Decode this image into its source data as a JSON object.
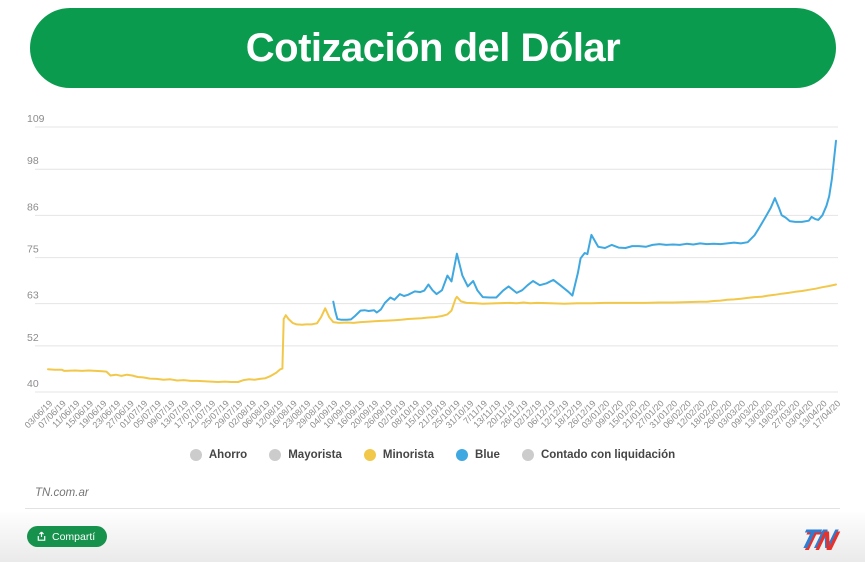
{
  "header": {
    "title": "Cotización del Dólar"
  },
  "footer": {
    "credit": "TN.com.ar",
    "share_label": "Compartí",
    "logo": {
      "t": "T",
      "n": "N"
    }
  },
  "legend": {
    "items": [
      {
        "label": "Ahorro",
        "color": "#cccccc",
        "active": false
      },
      {
        "label": "Mayorista",
        "color": "#cccccc",
        "active": false
      },
      {
        "label": "Minorista",
        "color": "#f2c84b",
        "active": true
      },
      {
        "label": "Blue",
        "color": "#3fa8e0",
        "active": true
      },
      {
        "label": "Contado con liquidación",
        "color": "#cccccc",
        "active": false
      }
    ]
  },
  "colors": {
    "banner_green": "#0a9b4e",
    "button_green": "#16924d",
    "gridline": "#e4e4e4",
    "axis_text": "#8c8c8c",
    "minorista": "#f2c84b",
    "blue": "#3fa8e0",
    "logo_red": "#e8312a",
    "logo_blue": "#2d7dd2"
  },
  "chart_data": {
    "type": "line",
    "title": "Cotización del Dólar",
    "xlabel": "",
    "ylabel": "",
    "ylim": [
      40,
      109
    ],
    "y_ticks": [
      40,
      52,
      63,
      75,
      86,
      98,
      109
    ],
    "grid": true,
    "legend_position": "bottom",
    "x_labels": [
      "03/06/19",
      "07/06/19",
      "11/06/19",
      "15/06/19",
      "19/06/19",
      "23/06/19",
      "27/06/19",
      "01/07/19",
      "05/07/19",
      "09/07/19",
      "13/07/19",
      "17/07/19",
      "21/07/19",
      "25/07/19",
      "29/07/19",
      "02/08/19",
      "06/08/19",
      "12/08/19",
      "16/08/19",
      "23/08/19",
      "29/08/19",
      "04/09/19",
      "10/09/19",
      "16/09/19",
      "20/09/19",
      "26/09/19",
      "02/10/19",
      "08/10/19",
      "15/10/19",
      "21/10/19",
      "25/10/19",
      "31/10/19",
      "7/11/19",
      "13/11/19",
      "20/11/19",
      "26/11/19",
      "02/12/19",
      "06/12/19",
      "12/12/19",
      "18/12/19",
      "26/12/19",
      "03/01/20",
      "09/01/20",
      "15/01/20",
      "21/01/20",
      "27/01/20",
      "31/01/20",
      "06/02/20",
      "12/02/20",
      "18/02/20",
      "26/02/20",
      "03/03/20",
      "09/03/20",
      "13/03/20",
      "19/03/20",
      "27/03/20",
      "03/04/20",
      "13/04/20",
      "17/04/20"
    ],
    "series": [
      {
        "name": "Ahorro",
        "color": "#cccccc",
        "visible": false,
        "points": []
      },
      {
        "name": "Mayorista",
        "color": "#cccccc",
        "visible": false,
        "points": []
      },
      {
        "name": "Minorista",
        "color": "#f2c84b",
        "visible": true,
        "points": [
          [
            0,
            45.9
          ],
          [
            0.5,
            45.8
          ],
          [
            1,
            45.8
          ],
          [
            1.2,
            45.5
          ],
          [
            2,
            45.6
          ],
          [
            2.5,
            45.5
          ],
          [
            3,
            45.6
          ],
          [
            3.5,
            45.5
          ],
          [
            4,
            45.4
          ],
          [
            4.3,
            45.3
          ],
          [
            4.6,
            44.3
          ],
          [
            5,
            44.5
          ],
          [
            5.4,
            44.2
          ],
          [
            5.8,
            44.5
          ],
          [
            6.2,
            44.3
          ],
          [
            6.6,
            43.9
          ],
          [
            7,
            43.8
          ],
          [
            7.5,
            43.5
          ],
          [
            8,
            43.4
          ],
          [
            8.5,
            43.2
          ],
          [
            9,
            43.3
          ],
          [
            9.5,
            43.0
          ],
          [
            10,
            43.1
          ],
          [
            10.5,
            42.9
          ],
          [
            11,
            42.9
          ],
          [
            11.5,
            42.8
          ],
          [
            12,
            42.7
          ],
          [
            12.5,
            42.6
          ],
          [
            13,
            42.7
          ],
          [
            13.5,
            42.6
          ],
          [
            14,
            42.6
          ],
          [
            14.4,
            43.1
          ],
          [
            14.8,
            43.3
          ],
          [
            15.2,
            43.2
          ],
          [
            15.6,
            43.4
          ],
          [
            16,
            43.6
          ],
          [
            16.4,
            44.2
          ],
          [
            16.8,
            45.0
          ],
          [
            17.1,
            45.9
          ],
          [
            17.25,
            46.1
          ],
          [
            17.35,
            59.0
          ],
          [
            17.5,
            60.0
          ],
          [
            17.7,
            59.0
          ],
          [
            18,
            58.0
          ],
          [
            18.3,
            57.6
          ],
          [
            18.7,
            57.5
          ],
          [
            19,
            57.6
          ],
          [
            19.4,
            57.6
          ],
          [
            19.8,
            57.9
          ],
          [
            20.1,
            59.5
          ],
          [
            20.4,
            61.8
          ],
          [
            20.7,
            59.5
          ],
          [
            21,
            58.2
          ],
          [
            21.4,
            58.0
          ],
          [
            22,
            58.1
          ],
          [
            22.5,
            58.0
          ],
          [
            23,
            58.2
          ],
          [
            23.5,
            58.3
          ],
          [
            24,
            58.4
          ],
          [
            24.5,
            58.5
          ],
          [
            25,
            58.6
          ],
          [
            25.5,
            58.7
          ],
          [
            26,
            58.8
          ],
          [
            26.5,
            59.0
          ],
          [
            27,
            59.1
          ],
          [
            27.5,
            59.2
          ],
          [
            28,
            59.4
          ],
          [
            28.5,
            59.5
          ],
          [
            29,
            59.8
          ],
          [
            29.4,
            60.2
          ],
          [
            29.7,
            61.2
          ],
          [
            30,
            64.3
          ],
          [
            30.1,
            64.8
          ],
          [
            30.4,
            63.6
          ],
          [
            30.8,
            63.2
          ],
          [
            31.5,
            63.1
          ],
          [
            32,
            63.0
          ],
          [
            33,
            63.1
          ],
          [
            34,
            63.2
          ],
          [
            34.5,
            63.1
          ],
          [
            35,
            63.3
          ],
          [
            35.5,
            63.1
          ],
          [
            36,
            63.2
          ],
          [
            37,
            63.1
          ],
          [
            38,
            63.0
          ],
          [
            39,
            63.1
          ],
          [
            40,
            63.1
          ],
          [
            41,
            63.2
          ],
          [
            42,
            63.2
          ],
          [
            43,
            63.2
          ],
          [
            44,
            63.2
          ],
          [
            45,
            63.3
          ],
          [
            46,
            63.3
          ],
          [
            47,
            63.4
          ],
          [
            48,
            63.5
          ],
          [
            48.5,
            63.5
          ],
          [
            49,
            63.7
          ],
          [
            49.5,
            63.8
          ],
          [
            50,
            64.0
          ],
          [
            50.5,
            64.1
          ],
          [
            51,
            64.3
          ],
          [
            51.5,
            64.5
          ],
          [
            52,
            64.7
          ],
          [
            52.5,
            64.8
          ],
          [
            53,
            65.1
          ],
          [
            53.5,
            65.3
          ],
          [
            54,
            65.6
          ],
          [
            54.5,
            65.8
          ],
          [
            55,
            66.1
          ],
          [
            55.5,
            66.3
          ],
          [
            56,
            66.6
          ],
          [
            56.5,
            66.9
          ],
          [
            57,
            67.3
          ],
          [
            57.5,
            67.6
          ],
          [
            58,
            68.0
          ]
        ]
      },
      {
        "name": "Blue",
        "color": "#3fa8e0",
        "visible": true,
        "points": [
          [
            21,
            63.5
          ],
          [
            21.15,
            61.0
          ],
          [
            21.3,
            59.0
          ],
          [
            21.6,
            58.8
          ],
          [
            22,
            58.8
          ],
          [
            22.3,
            58.9
          ],
          [
            22.6,
            59.8
          ],
          [
            23,
            61.2
          ],
          [
            23.3,
            61.3
          ],
          [
            23.6,
            61.1
          ],
          [
            24,
            61.3
          ],
          [
            24.2,
            60.7
          ],
          [
            24.5,
            61.5
          ],
          [
            24.8,
            63.2
          ],
          [
            25.2,
            64.6
          ],
          [
            25.5,
            64.0
          ],
          [
            25.9,
            65.5
          ],
          [
            26.2,
            65.0
          ],
          [
            26.5,
            65.3
          ],
          [
            27,
            66.2
          ],
          [
            27.4,
            66.0
          ],
          [
            27.7,
            66.4
          ],
          [
            28,
            68.0
          ],
          [
            28.3,
            66.5
          ],
          [
            28.6,
            65.5
          ],
          [
            29,
            66.5
          ],
          [
            29.4,
            70.3
          ],
          [
            29.7,
            68.8
          ],
          [
            30.1,
            76.0
          ],
          [
            30.5,
            70.3
          ],
          [
            30.9,
            67.5
          ],
          [
            31.3,
            68.9
          ],
          [
            31.6,
            66.5
          ],
          [
            32,
            64.7
          ],
          [
            32.5,
            64.6
          ],
          [
            33,
            64.6
          ],
          [
            33.5,
            66.4
          ],
          [
            33.9,
            67.5
          ],
          [
            34.5,
            65.8
          ],
          [
            34.9,
            66.5
          ],
          [
            35.3,
            67.8
          ],
          [
            35.7,
            68.9
          ],
          [
            36.2,
            67.8
          ],
          [
            36.7,
            68.3
          ],
          [
            37.2,
            69.2
          ],
          [
            37.7,
            67.8
          ],
          [
            38.3,
            66.1
          ],
          [
            38.6,
            65.1
          ],
          [
            39,
            71.0
          ],
          [
            39.2,
            74.8
          ],
          [
            39.5,
            76.2
          ],
          [
            39.7,
            75.9
          ],
          [
            40,
            80.9
          ],
          [
            40.5,
            77.8
          ],
          [
            41,
            77.5
          ],
          [
            41.5,
            78.3
          ],
          [
            42,
            77.6
          ],
          [
            42.5,
            77.5
          ],
          [
            43,
            78.0
          ],
          [
            43.5,
            78.0
          ],
          [
            44,
            77.8
          ],
          [
            44.5,
            78.3
          ],
          [
            45,
            78.5
          ],
          [
            45.5,
            78.3
          ],
          [
            46,
            78.4
          ],
          [
            46.5,
            78.3
          ],
          [
            47,
            78.6
          ],
          [
            47.5,
            78.4
          ],
          [
            48,
            78.7
          ],
          [
            48.5,
            78.5
          ],
          [
            49,
            78.6
          ],
          [
            49.5,
            78.5
          ],
          [
            50,
            78.7
          ],
          [
            50.5,
            78.9
          ],
          [
            51,
            78.7
          ],
          [
            51.5,
            79.0
          ],
          [
            52,
            80.8
          ],
          [
            52.3,
            82.5
          ],
          [
            52.8,
            85.5
          ],
          [
            53.2,
            88.0
          ],
          [
            53.5,
            90.5
          ],
          [
            53.8,
            88.0
          ],
          [
            54,
            86.0
          ],
          [
            54.3,
            85.4
          ],
          [
            54.6,
            84.5
          ],
          [
            55,
            84.3
          ],
          [
            55.5,
            84.3
          ],
          [
            56,
            84.6
          ],
          [
            56.2,
            85.6
          ],
          [
            56.5,
            85.0
          ],
          [
            56.7,
            84.8
          ],
          [
            57,
            86.0
          ],
          [
            57.3,
            88.5
          ],
          [
            57.5,
            91.0
          ],
          [
            57.7,
            95.5
          ],
          [
            58,
            105.4
          ]
        ]
      },
      {
        "name": "Contado con liquidación",
        "color": "#cccccc",
        "visible": false,
        "points": []
      }
    ]
  }
}
